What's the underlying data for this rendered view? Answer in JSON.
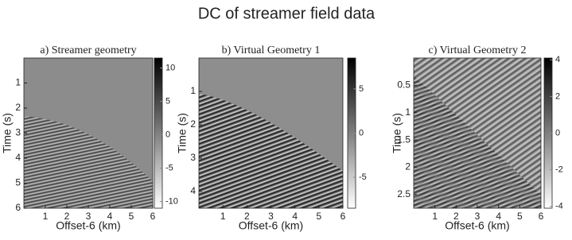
{
  "title": "DC of streamer field data",
  "chart_data": [
    {
      "type": "heatmap",
      "title": "a) Streamer geometry",
      "xlabel": "Offset-6 (km)",
      "ylabel": "Time (s)",
      "xlim": [
        0,
        6
      ],
      "xticks": [
        1,
        2,
        3,
        4,
        5,
        6
      ],
      "ylim": [
        0,
        6
      ],
      "yticks": [
        1,
        2,
        3,
        4,
        5,
        6
      ],
      "y_reversed": true,
      "clim": [
        -11,
        11.5
      ],
      "cticks": [
        10,
        5,
        0,
        -5,
        -10
      ]
    },
    {
      "type": "heatmap",
      "title": "b) Virtual Geometry 1",
      "xlabel": "Offset-6 (km)",
      "ylabel": "Time (s)",
      "xlim": [
        0,
        6
      ],
      "xticks": [
        1,
        2,
        3,
        4,
        5,
        6
      ],
      "ylim": [
        0,
        4.5
      ],
      "yticks": [
        1,
        2,
        3,
        4
      ],
      "y_reversed": true,
      "clim": [
        -8.5,
        8.5
      ],
      "cticks": [
        5,
        0,
        -5
      ]
    },
    {
      "type": "heatmap",
      "title": "c) Virtual Geometry 2",
      "xlabel": "Offset-6 (km)",
      "ylabel": "Time (s)",
      "xlim": [
        0,
        6
      ],
      "xticks": [
        1,
        2,
        3,
        4,
        5,
        6
      ],
      "ylim": [
        0,
        2.75
      ],
      "yticks": [
        0.5,
        1,
        1.5,
        2,
        2.5
      ],
      "y_reversed": true,
      "clim": [
        -4.1,
        4.1
      ],
      "cticks": [
        4,
        2,
        0,
        -2,
        -4
      ]
    }
  ]
}
